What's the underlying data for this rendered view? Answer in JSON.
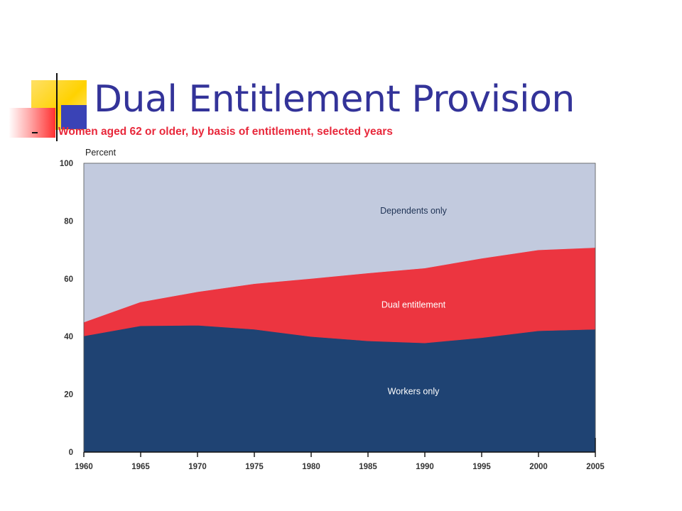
{
  "slide": {
    "title": "Dual Entitlement Provision",
    "subtitle": "Women aged 62 or older, by basis of entitlement, selected years"
  },
  "chart_data": {
    "type": "area",
    "stacked": true,
    "title": "Women aged 62 or older, by basis of entitlement, selected years",
    "ylabel": "Percent",
    "xlabel": "",
    "ylim": [
      0,
      100
    ],
    "yticks": [
      0,
      20,
      40,
      60,
      80,
      100
    ],
    "x": [
      1960,
      1965,
      1970,
      1975,
      1980,
      1985,
      1990,
      1995,
      2000,
      2005
    ],
    "series": [
      {
        "name": "Workers only",
        "color": "#1f4373",
        "values": [
          40.2,
          43.7,
          43.9,
          42.5,
          40.0,
          38.5,
          37.8,
          39.6,
          42.0,
          42.5
        ]
      },
      {
        "name": "Dual entitlement",
        "color": "#ec3540",
        "values": [
          4.8,
          8.3,
          11.6,
          15.8,
          20.1,
          23.5,
          25.9,
          27.5,
          28.0,
          28.3
        ]
      },
      {
        "name": "Dependents only",
        "color": "#c2cade",
        "values": [
          55.0,
          48.0,
          44.5,
          41.7,
          39.9,
          38.0,
          36.3,
          32.9,
          30.0,
          29.2
        ]
      }
    ],
    "grid": false,
    "legend": "none"
  }
}
